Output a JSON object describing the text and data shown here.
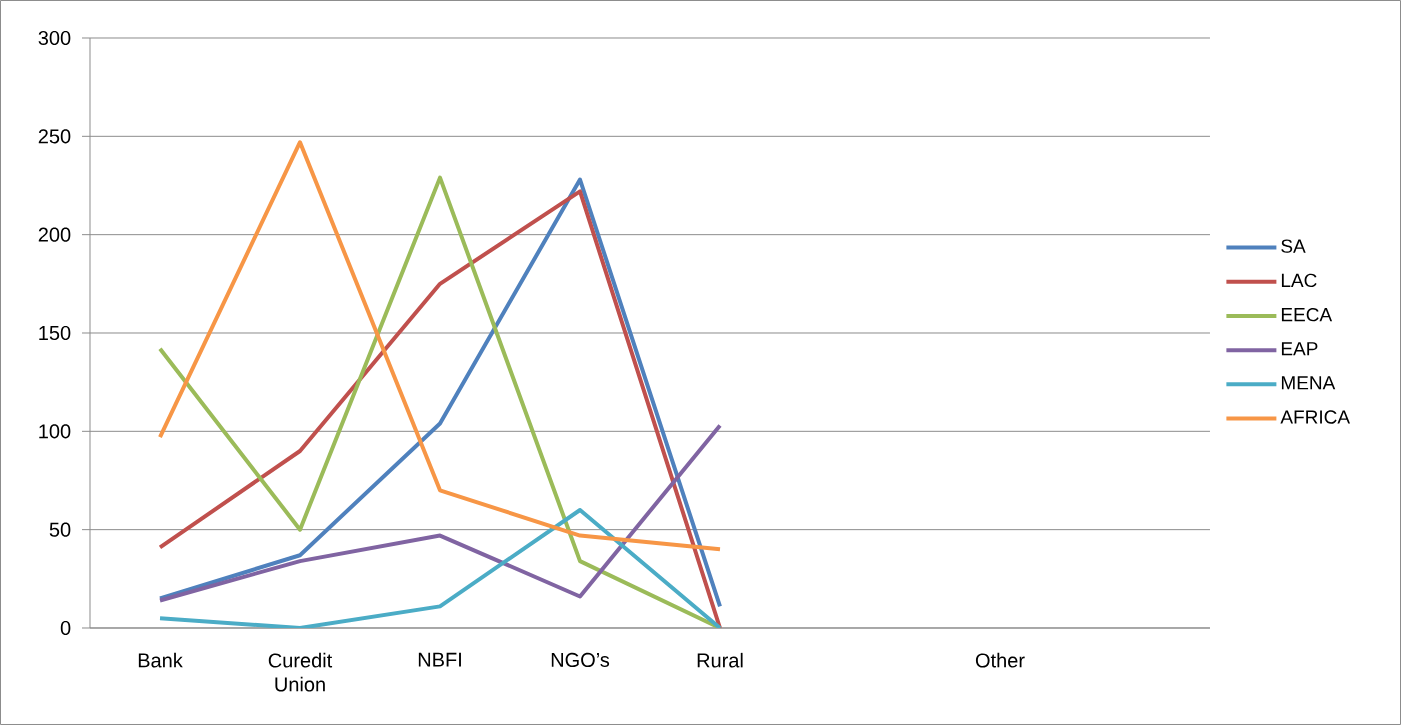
{
  "chart_data": {
    "type": "line",
    "categories": [
      "Bank",
      "Curedit Union",
      "NBFI",
      "NGO’s",
      "Rural",
      null,
      "Other",
      null
    ],
    "series": [
      {
        "name": "SA",
        "color": "#4f81bd",
        "values": [
          15,
          37,
          104,
          228,
          11,
          null,
          null,
          null
        ]
      },
      {
        "name": "LAC",
        "color": "#c0504d",
        "values": [
          41,
          90,
          175,
          222,
          0,
          null,
          null,
          null
        ]
      },
      {
        "name": "EECA",
        "color": "#9bbb59",
        "values": [
          142,
          50,
          229,
          34,
          0,
          null,
          null,
          null
        ]
      },
      {
        "name": "EAP",
        "color": "#8064a2",
        "values": [
          14,
          34,
          47,
          16,
          103,
          null,
          null,
          null
        ]
      },
      {
        "name": "MENA",
        "color": "#4bacc6",
        "values": [
          5,
          0,
          11,
          60,
          0,
          null,
          null,
          null
        ]
      },
      {
        "name": "AFRICA",
        "color": "#f79646",
        "values": [
          97,
          247,
          70,
          47,
          40,
          null,
          null,
          null
        ]
      }
    ],
    "ylim": [
      0,
      300
    ],
    "yticks": [
      0,
      50,
      100,
      150,
      200,
      250,
      300
    ],
    "grid": "y",
    "legend": "right",
    "line_style": "solid"
  }
}
